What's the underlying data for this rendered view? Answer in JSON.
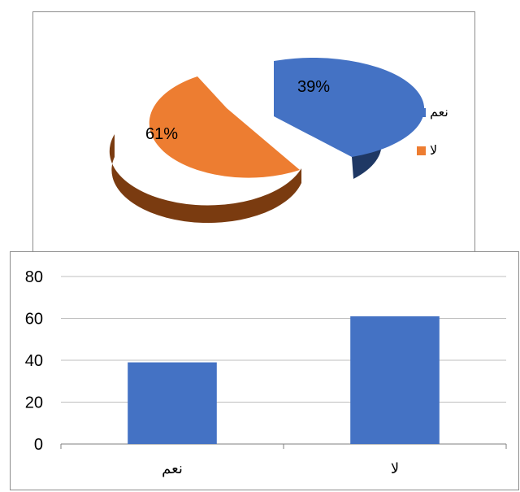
{
  "chart_data": [
    {
      "type": "pie",
      "style": "3d-exploded",
      "slices": [
        {
          "label": "نعم",
          "value": 39,
          "data_label": "39%",
          "color": "#4472C4",
          "side_color": "#1F3864"
        },
        {
          "label": "لا",
          "value": 61,
          "data_label": "61%",
          "color": "#ED7D31",
          "side_color": "#843C0C"
        }
      ],
      "legend": [
        {
          "label": "نعم",
          "color": "#4472C4"
        },
        {
          "label": "لا",
          "color": "#ED7D31"
        }
      ],
      "legend_position": "right"
    },
    {
      "type": "bar",
      "categories": [
        "نعم",
        "لا"
      ],
      "values": [
        39,
        61
      ],
      "bar_color": "#4472C4",
      "ylim": [
        0,
        80
      ],
      "yticks": [
        "0",
        "20",
        "40",
        "60",
        "80"
      ],
      "grid": true
    }
  ]
}
